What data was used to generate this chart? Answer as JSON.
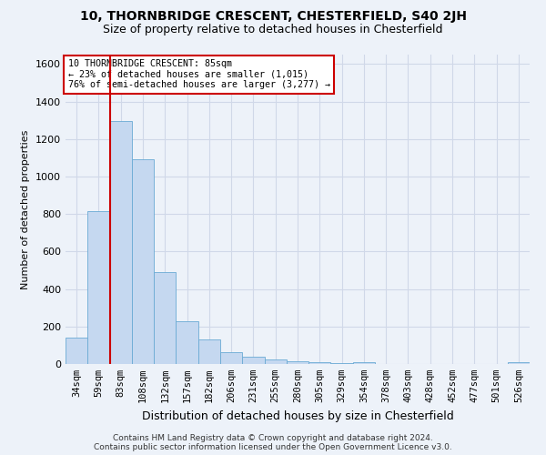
{
  "title_line1": "10, THORNBRIDGE CRESCENT, CHESTERFIELD, S40 2JH",
  "title_line2": "Size of property relative to detached houses in Chesterfield",
  "xlabel": "Distribution of detached houses by size in Chesterfield",
  "ylabel": "Number of detached properties",
  "categories": [
    "34sqm",
    "59sqm",
    "83sqm",
    "108sqm",
    "132sqm",
    "157sqm",
    "182sqm",
    "206sqm",
    "231sqm",
    "255sqm",
    "280sqm",
    "305sqm",
    "329sqm",
    "354sqm",
    "378sqm",
    "403sqm",
    "428sqm",
    "452sqm",
    "477sqm",
    "501sqm",
    "526sqm"
  ],
  "bar_values": [
    140,
    815,
    1295,
    1090,
    490,
    230,
    130,
    65,
    38,
    25,
    15,
    10,
    5,
    12,
    2,
    2,
    2,
    2,
    2,
    2,
    12
  ],
  "bar_color": "#c5d8f0",
  "bar_edge_color": "#6aaad4",
  "vline_index": 2,
  "vline_color": "#cc0000",
  "annotation_line1": "10 THORNBRIDGE CRESCENT: 85sqm",
  "annotation_line2": "← 23% of detached houses are smaller (1,015)",
  "annotation_line3": "76% of semi-detached houses are larger (3,277) →",
  "annotation_box_facecolor": "#ffffff",
  "annotation_box_edgecolor": "#cc0000",
  "ylim_max": 1650,
  "yticks": [
    0,
    200,
    400,
    600,
    800,
    1000,
    1200,
    1400,
    1600
  ],
  "footer_text": "Contains HM Land Registry data © Crown copyright and database right 2024.\nContains public sector information licensed under the Open Government Licence v3.0.",
  "bg_color": "#edf2f9",
  "grid_color": "#d0d8e8",
  "title_fontsize": 10,
  "subtitle_fontsize": 9,
  "ylabel_fontsize": 8,
  "xlabel_fontsize": 9,
  "tick_fontsize": 7.5,
  "footer_fontsize": 6.5
}
